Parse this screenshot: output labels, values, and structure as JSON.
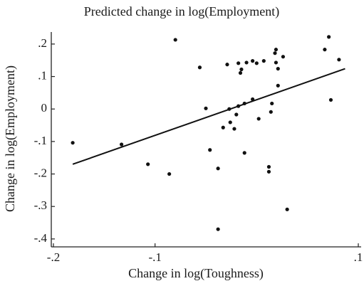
{
  "chart_data": {
    "type": "scatter",
    "title": "Predicted change in log(Employment)",
    "x_label": "Change in log(Toughness)",
    "y_label": "Change in log(Employment)",
    "x": [
      -0.181,
      -0.133,
      -0.107,
      -0.086,
      -0.08,
      -0.056,
      -0.05,
      -0.046,
      -0.038,
      -0.038,
      -0.033,
      -0.029,
      -0.027,
      -0.026,
      -0.022,
      -0.02,
      -0.018,
      -0.016,
      -0.015,
      -0.018,
      -0.012,
      -0.012,
      -0.01,
      -0.004,
      -0.004,
      0.0,
      0.002,
      0.007,
      0.012,
      0.012,
      0.015,
      0.014,
      0.018,
      0.019,
      0.019,
      0.021,
      0.021,
      0.026,
      0.03,
      0.067,
      0.071,
      0.073,
      0.081
    ],
    "values": [
      -0.104,
      -0.109,
      -0.17,
      -0.2,
      0.213,
      0.128,
      0.002,
      -0.126,
      -0.183,
      -0.37,
      -0.057,
      0.137,
      0.0,
      -0.041,
      -0.061,
      -0.017,
      0.141,
      0.111,
      0.122,
      0.009,
      0.017,
      -0.135,
      0.143,
      0.03,
      0.148,
      0.141,
      -0.03,
      0.148,
      -0.178,
      -0.193,
      0.017,
      -0.009,
      0.172,
      0.183,
      0.143,
      0.124,
      0.072,
      0.161,
      -0.309,
      0.183,
      0.222,
      0.028,
      0.152
    ],
    "color": "#111111",
    "fit_line": {
      "x": [
        -0.181,
        0.087
      ],
      "y": [
        -0.17,
        0.124
      ]
    },
    "xlim": [
      -0.2,
      0.1
    ],
    "ylim": [
      -0.42,
      0.237
    ],
    "xticks": [
      {
        "value": -0.2,
        "label": "-.2"
      },
      {
        "value": -0.1,
        "label": "-.1"
      },
      {
        "value": 0.1,
        "label": ".1"
      }
    ],
    "yticks": [
      {
        "value": 0.2,
        "label": ".2"
      },
      {
        "value": 0.1,
        "label": ".1"
      },
      0,
      {
        "value": -0.1,
        "label": "-.1"
      },
      {
        "value": -0.2,
        "label": "-.2"
      },
      {
        "value": -0.3,
        "label": "-.3"
      },
      {
        "value": -0.4,
        "label": "-.4"
      }
    ]
  }
}
